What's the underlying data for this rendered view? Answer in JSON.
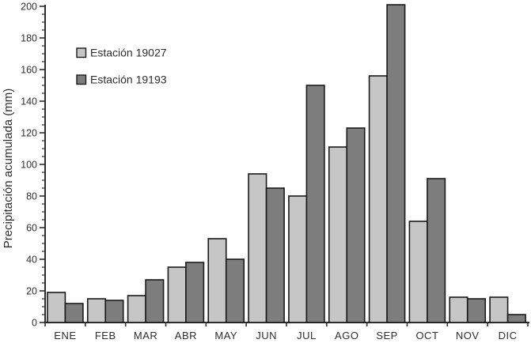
{
  "chart_data": {
    "type": "bar",
    "title": "",
    "xlabel": "",
    "ylabel": "Precipitación acumulada (mm)",
    "categories": [
      "ENE",
      "FEB",
      "MAR",
      "ABR",
      "MAY",
      "JUN",
      "JUL",
      "AGO",
      "SEP",
      "OCT",
      "NOV",
      "DIC"
    ],
    "series": [
      {
        "name": "Estación 19027",
        "color": "#c6c6c6",
        "values": [
          19,
          15,
          17,
          35,
          53,
          94,
          80,
          111,
          156,
          64,
          16,
          16
        ]
      },
      {
        "name": "Estación 19193",
        "color": "#7d7d7d",
        "values": [
          12,
          14,
          27,
          38,
          40,
          85,
          150,
          123,
          201,
          91,
          15,
          5
        ]
      }
    ],
    "ylim": [
      0,
      200
    ],
    "yticks": [
      0,
      20,
      40,
      60,
      80,
      100,
      120,
      140,
      160,
      180,
      200
    ],
    "minor_tick_step": 5,
    "grid": false,
    "legend_position": "upper-left-inside",
    "bar_border_color": "#1a1a1a",
    "axis_color": "#2e2e2e",
    "background_color": "#ffffff"
  }
}
